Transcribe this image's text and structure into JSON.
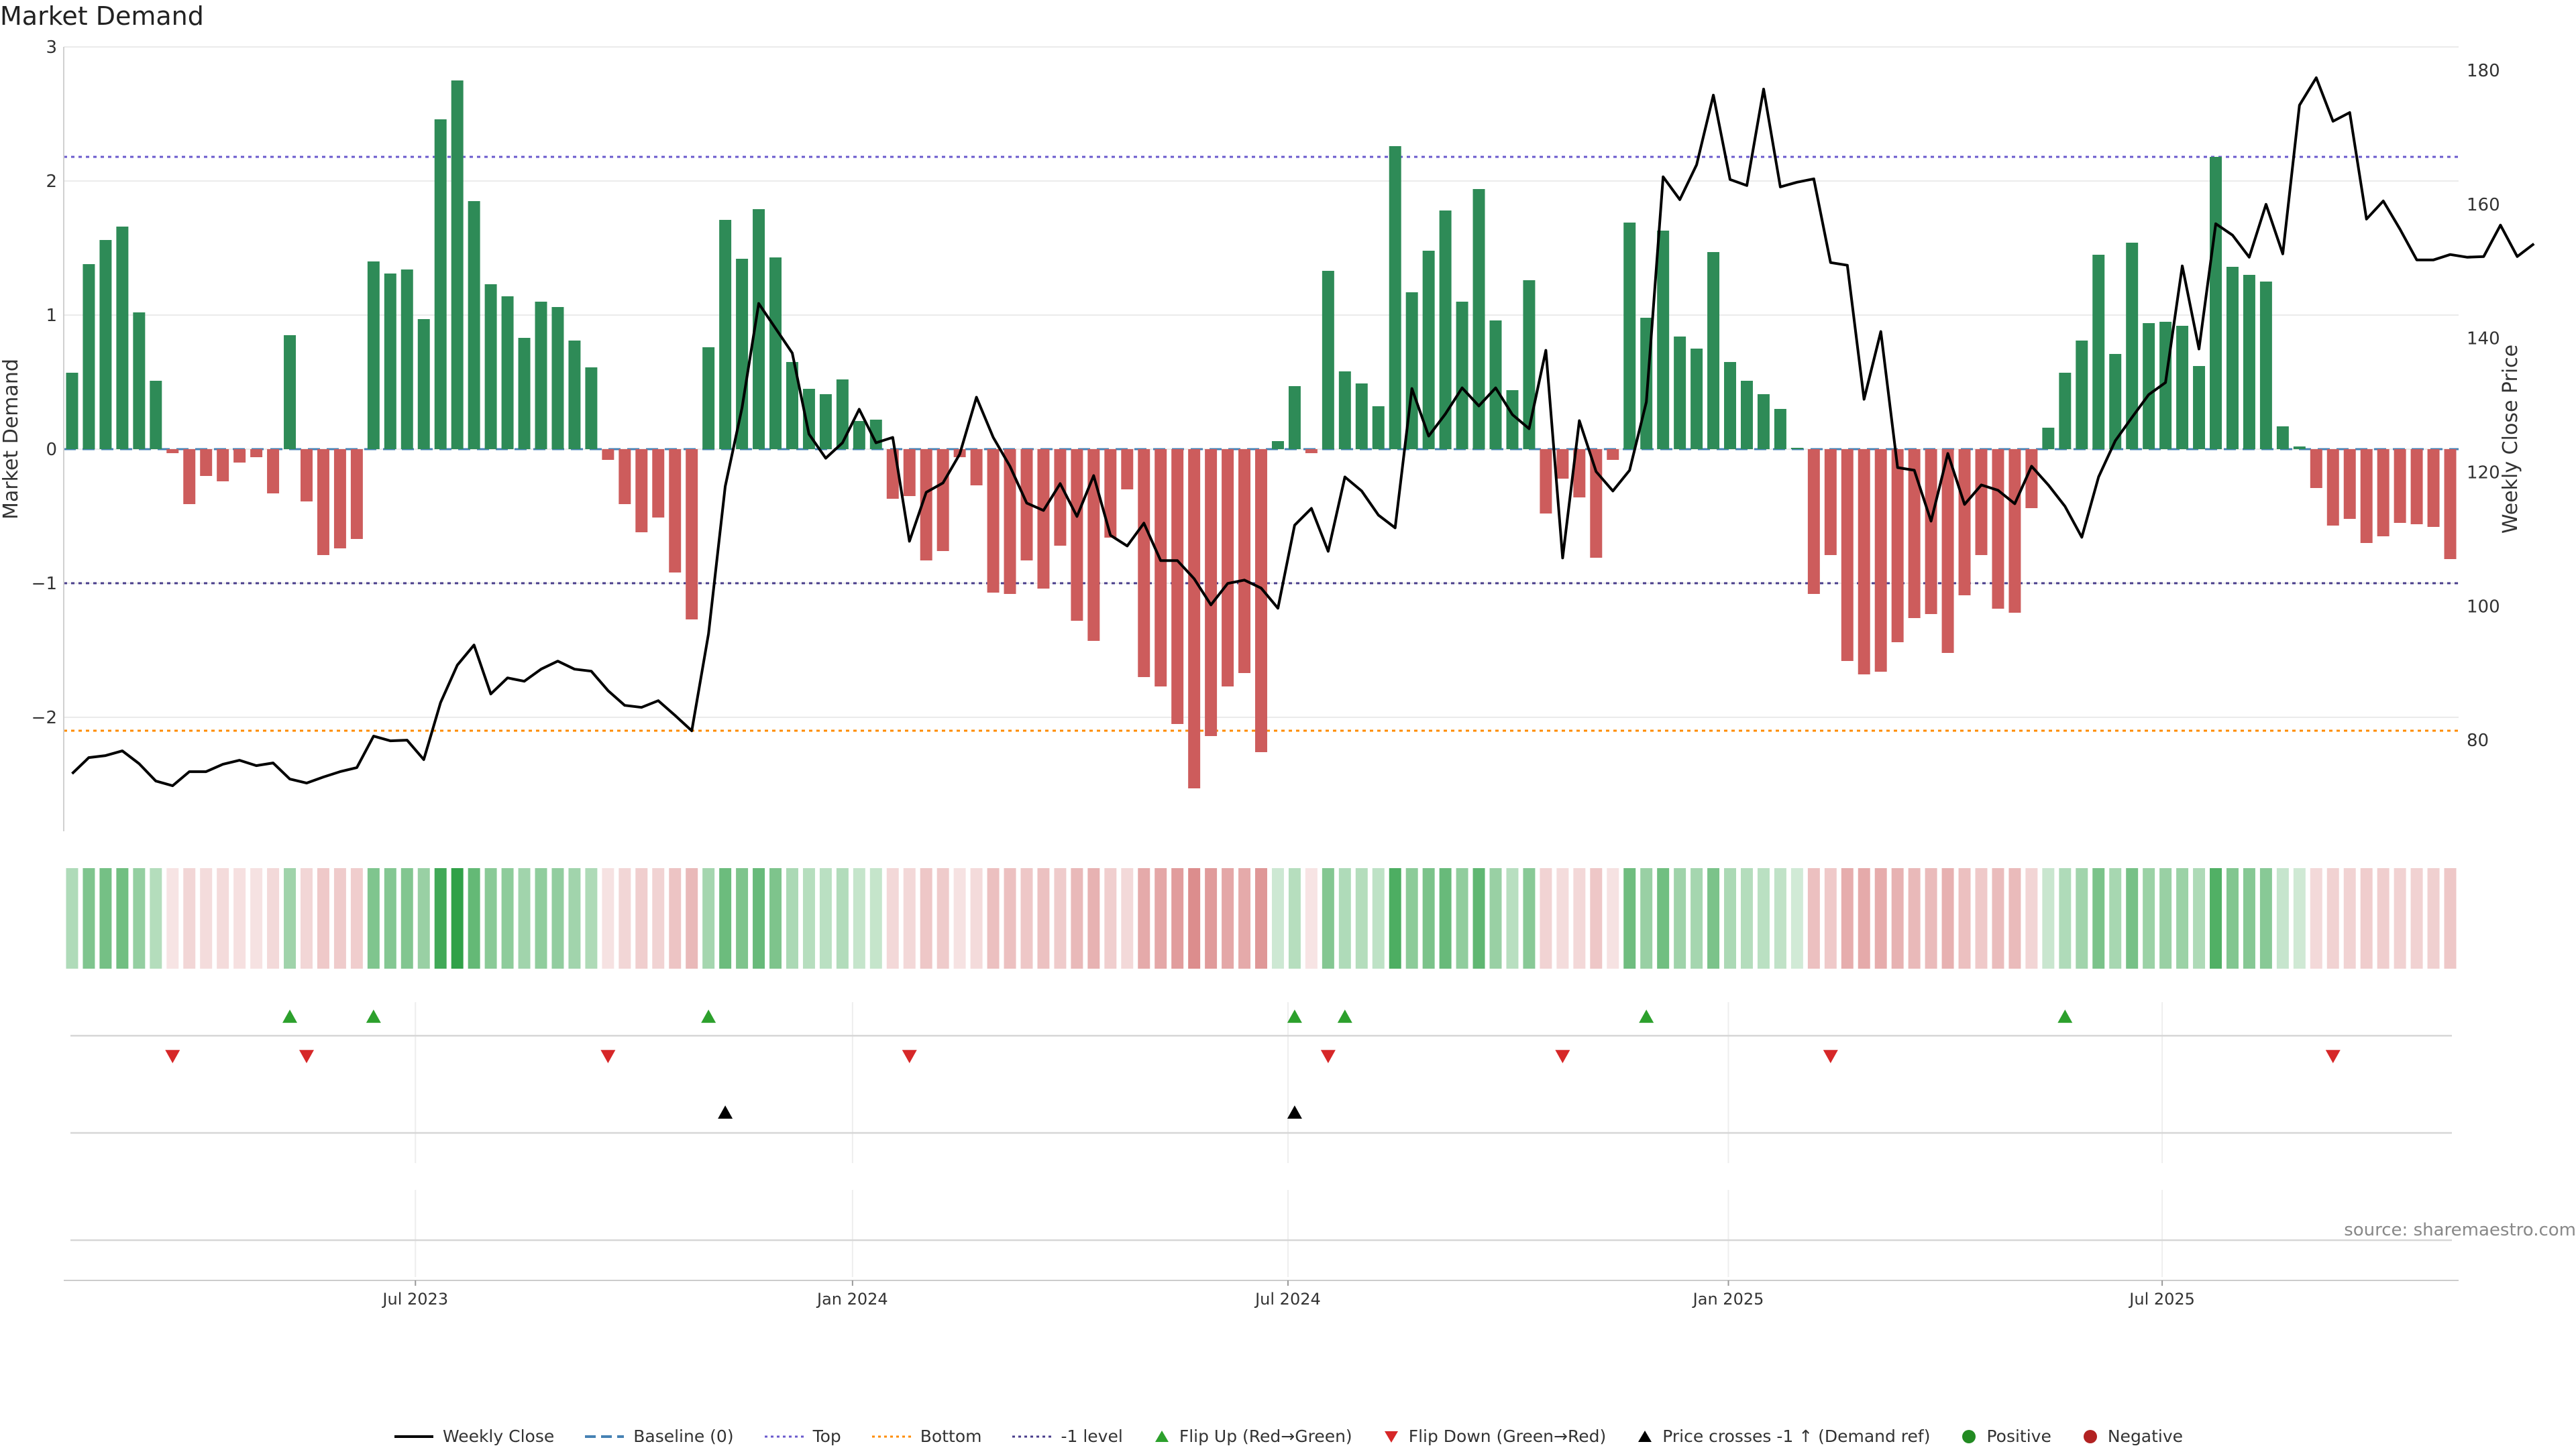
{
  "title": "Market Demand",
  "source": "source: sharemaestro.com",
  "colors": {
    "positive": "#2e8b57",
    "negative": "#cd5c5c",
    "price": "#000000",
    "baseline": "#4682b4",
    "top": "#6a5acd",
    "bottom": "#ff8c00",
    "minus1": "#483d8b",
    "flip_up": "#2ca02c",
    "flip_down": "#d62728",
    "cross": "#000000",
    "dot_positive": "#228b22",
    "dot_negative": "#b22222"
  },
  "legend": [
    {
      "label": "Weekly Close",
      "symbol": "line-solid",
      "color": "#000000"
    },
    {
      "label": "Baseline (0)",
      "symbol": "line-dash",
      "color": "#4682b4"
    },
    {
      "label": "Top",
      "symbol": "line-dot",
      "color": "#6a5acd"
    },
    {
      "label": "Bottom",
      "symbol": "line-dot",
      "color": "#ff8c00"
    },
    {
      "label": "-1 level",
      "symbol": "line-dot",
      "color": "#483d8b"
    },
    {
      "label": "Flip Up (Red→Green)",
      "symbol": "tri-up",
      "color": "#2ca02c"
    },
    {
      "label": "Flip Down (Green→Red)",
      "symbol": "tri-down",
      "color": "#d62728"
    },
    {
      "label": "Price crosses -1 ↑ (Demand ref)",
      "symbol": "tri-up",
      "color": "#000000"
    },
    {
      "label": "Positive",
      "symbol": "dot",
      "color": "#228b22"
    },
    {
      "label": "Negative",
      "symbol": "dot",
      "color": "#b22222"
    }
  ],
  "chart_data": {
    "type": "bar",
    "title": "Market Demand",
    "ylabel": "Market Demand",
    "y2label": "Weekly Close Price",
    "ylim": [
      -2.85,
      3.0
    ],
    "y2lim": [
      66.4,
      183.5
    ],
    "yticks": [
      3,
      2,
      1,
      0,
      -1,
      -2
    ],
    "y2ticks": [
      180,
      160,
      140,
      120,
      100,
      80
    ],
    "ytick_labels": [
      "3",
      "2",
      "1",
      "0",
      "−1",
      "−2"
    ],
    "y2tick_labels": [
      "180",
      "160",
      "140",
      "120",
      "100",
      "80"
    ],
    "xticks": [
      {
        "label": "Jul 2023",
        "week": 21
      },
      {
        "label": "Jan 2024",
        "week": 47.1
      },
      {
        "label": "Jul 2024",
        "week": 73.1
      },
      {
        "label": "Jan 2025",
        "week": 99.4
      },
      {
        "label": "Jul 2025",
        "week": 125.3
      }
    ],
    "reference_lines": {
      "top": 2.18,
      "bottom": -2.1,
      "minus1": -1.0,
      "baseline": 0
    },
    "demand": [
      0.57,
      1.38,
      1.56,
      1.66,
      1.02,
      0.51,
      -0.03,
      -0.41,
      -0.2,
      -0.24,
      -0.1,
      -0.06,
      -0.33,
      0.85,
      -0.39,
      -0.79,
      -0.74,
      -0.67,
      1.4,
      1.31,
      1.34,
      0.97,
      2.46,
      2.75,
      1.85,
      1.23,
      1.14,
      0.83,
      1.1,
      1.06,
      0.81,
      0.61,
      -0.08,
      -0.41,
      -0.62,
      -0.51,
      -0.92,
      -1.27,
      0.76,
      1.71,
      1.42,
      1.79,
      1.43,
      0.65,
      0.45,
      0.41,
      0.52,
      0.21,
      0.22,
      -0.37,
      -0.35,
      -0.83,
      -0.76,
      -0.06,
      -0.27,
      -1.07,
      -1.08,
      -0.83,
      -1.04,
      -0.72,
      -1.28,
      -1.43,
      -0.66,
      -0.3,
      -1.7,
      -1.77,
      -2.05,
      -2.53,
      -2.14,
      -1.77,
      -1.67,
      -2.26,
      0.06,
      0.47,
      -0.03,
      1.33,
      0.58,
      0.49,
      0.32,
      2.26,
      1.17,
      1.48,
      1.78,
      1.1,
      1.94,
      0.96,
      0.44,
      1.26,
      -0.48,
      -0.22,
      -0.36,
      -0.81,
      -0.08,
      1.69,
      0.98,
      1.63,
      0.84,
      0.75,
      1.47,
      0.65,
      0.51,
      0.41,
      0.3,
      0.01,
      -1.08,
      -0.79,
      -1.58,
      -1.68,
      -1.66,
      -1.44,
      -1.26,
      -1.23,
      -1.52,
      -1.09,
      -0.79,
      -1.19,
      -1.22,
      -0.44,
      0.16,
      0.57,
      0.81,
      1.45,
      0.71,
      1.54,
      0.94,
      0.95,
      0.92,
      0.62,
      2.18,
      1.36,
      1.3,
      1.25,
      0.17,
      0.02,
      -0.29,
      -0.57,
      -0.52,
      -0.7,
      -0.65,
      -0.55,
      -0.56,
      -0.58,
      -0.82
    ],
    "price": [
      75,
      77.4,
      77.7,
      78.4,
      76.5,
      73.9,
      73.2,
      75.3,
      75.3,
      76.4,
      77,
      76.2,
      76.6,
      74.2,
      73.6,
      74.5,
      75.3,
      75.9,
      80.6,
      79.9,
      80,
      77.1,
      85.6,
      91.2,
      94.2,
      86.9,
      89.3,
      88.8,
      90.6,
      91.8,
      90.6,
      90.3,
      87.4,
      85.2,
      84.9,
      85.9,
      83.7,
      81.4,
      95.9,
      117.9,
      129.6,
      145.2,
      141.5,
      137.8,
      125.7,
      122.1,
      124.4,
      129.4,
      124.4,
      125.2,
      109.7,
      117,
      118.4,
      122.7,
      131.2,
      125.2,
      120.9,
      115.4,
      114.3,
      118.3,
      113.4,
      119.5,
      110.6,
      109,
      112.4,
      106.8,
      106.8,
      104.1,
      100.2,
      103.4,
      103.9,
      102.7,
      99.7,
      112.1,
      114.6,
      108.2,
      119.3,
      117.2,
      113.6,
      111.7,
      132.5,
      125.4,
      128.7,
      132.6,
      129.9,
      132.6,
      128.6,
      126.5,
      138.2,
      107.2,
      127.7,
      120.1,
      117.2,
      120.3,
      130.5,
      164.1,
      160.7,
      165.9,
      176.3,
      163.7,
      162.8,
      177.2,
      162.6,
      163.3,
      163.8,
      151.3,
      150.9,
      130.9,
      141,
      120.7,
      120.3,
      112.7,
      122.8,
      115.2,
      118.1,
      117.3,
      115.3,
      120.9,
      118.1,
      114.9,
      110.3,
      119.3,
      124.7,
      128.2,
      131.6,
      133.4,
      150.8,
      138.4,
      157.1,
      155.4,
      152.1,
      160,
      152.6,
      174.8,
      178.9,
      172.4,
      173.7,
      157.8,
      160.5,
      156.3,
      151.7,
      151.7,
      152.5,
      152.1,
      152.2,
      156.9,
      152.2,
      154.1
    ],
    "heat_strip": "weekly demand intensity (same values as bars)",
    "flip_up_weeks": [
      13,
      18,
      38,
      73,
      76,
      94,
      119
    ],
    "flip_down_weeks": [
      6,
      14,
      32,
      50,
      75,
      89,
      105,
      135
    ],
    "price_cross_weeks": [
      39,
      73
    ]
  }
}
